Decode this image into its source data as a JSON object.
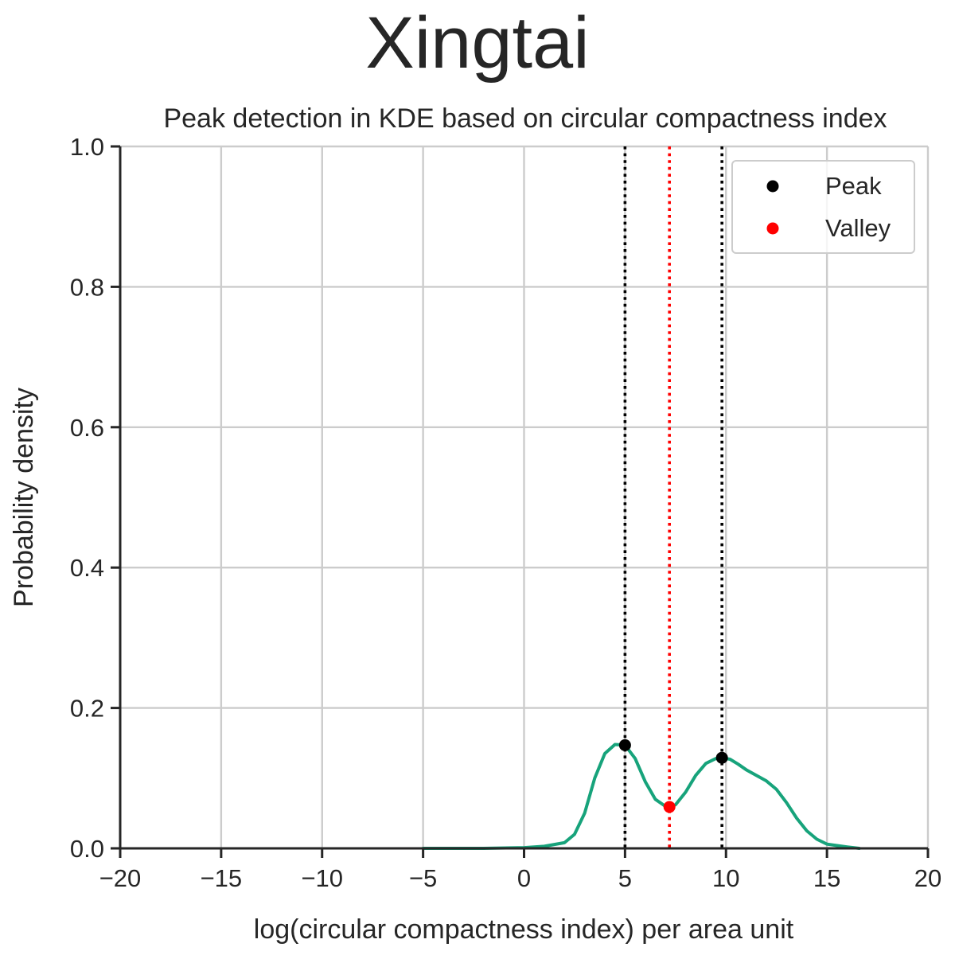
{
  "chart_data": {
    "type": "line",
    "suptitle": "Xingtai",
    "title": "Peak detection in KDE based on circular compactness index",
    "xlabel": "log(circular compactness index) per area unit",
    "ylabel": "Probability density",
    "xlim": [
      -20,
      20
    ],
    "ylim": [
      0,
      1.0
    ],
    "xticks": [
      -20,
      -15,
      -10,
      -5,
      0,
      5,
      10,
      15,
      20
    ],
    "xtick_labels": [
      "−20",
      "−15",
      "−10",
      "−5",
      "0",
      "5",
      "10",
      "15",
      "20"
    ],
    "yticks": [
      0,
      0.2,
      0.4,
      0.6,
      0.8,
      1.0
    ],
    "ytick_labels": [
      "0.0",
      "0.2",
      "0.4",
      "0.6",
      "0.8",
      "1.0"
    ],
    "grid": true,
    "legend_position": "top-right",
    "series": [
      {
        "kind": "kde",
        "color": "#17a37b",
        "x": [
          -5.0,
          -2.0,
          0.0,
          1.0,
          2.0,
          2.5,
          3.0,
          3.5,
          4.0,
          4.5,
          5.0,
          5.5,
          6.0,
          6.5,
          7.0,
          7.2,
          7.5,
          8.0,
          8.5,
          9.0,
          9.5,
          9.8,
          10.2,
          10.6,
          11.0,
          11.5,
          12.0,
          12.5,
          13.0,
          13.5,
          14.0,
          14.5,
          15.0,
          15.5,
          16.0,
          16.6
        ],
        "y": [
          0.0,
          0.0,
          0.001,
          0.003,
          0.008,
          0.02,
          0.05,
          0.1,
          0.135,
          0.148,
          0.147,
          0.128,
          0.095,
          0.07,
          0.06,
          0.059,
          0.062,
          0.08,
          0.104,
          0.121,
          0.128,
          0.129,
          0.127,
          0.12,
          0.112,
          0.104,
          0.096,
          0.084,
          0.065,
          0.043,
          0.025,
          0.013,
          0.006,
          0.004,
          0.002,
          0.0
        ]
      },
      {
        "name": "Peak",
        "kind": "points",
        "color": "#000000",
        "x": [
          5.0,
          9.8
        ],
        "y": [
          0.147,
          0.129
        ]
      },
      {
        "name": "Valley",
        "kind": "points",
        "color": "#ff0000",
        "x": [
          7.2
        ],
        "y": [
          0.059
        ]
      }
    ],
    "vlines": [
      {
        "x": 5.0,
        "color": "#000000",
        "style": "dotted"
      },
      {
        "x": 7.2,
        "color": "#ff0000",
        "style": "dotted"
      },
      {
        "x": 9.8,
        "color": "#000000",
        "style": "dotted"
      }
    ]
  }
}
